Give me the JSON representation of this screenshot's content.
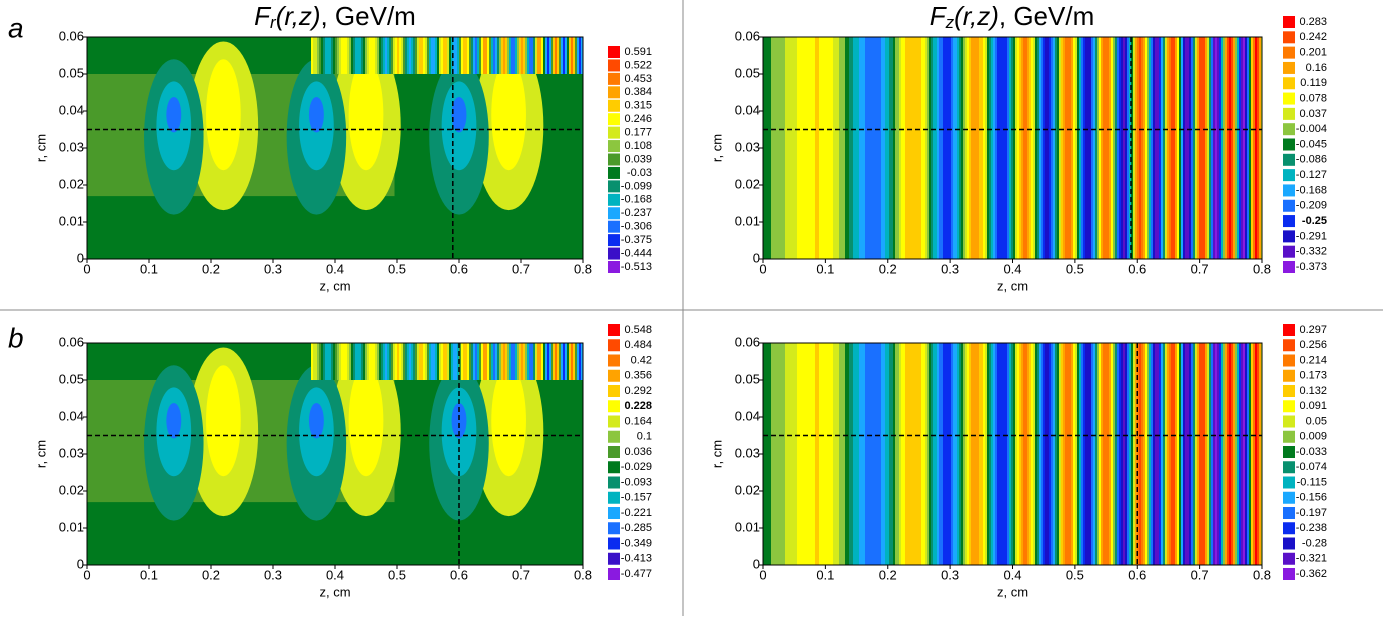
{
  "panel_labels": [
    "a",
    "b"
  ],
  "chart_data": [
    {
      "type": "contour",
      "title": [
        "F",
        "r",
        "(r,z)",
        ", GeV/m"
      ],
      "xlabel": "z, cm",
      "ylabel": "r, cm",
      "xlim": [
        0,
        0.8
      ],
      "ylim": [
        0,
        0.06
      ],
      "xticks": [
        0,
        0.1,
        0.2,
        0.3,
        0.4,
        0.5,
        0.6,
        0.7,
        0.8
      ],
      "yticks": [
        0,
        0.01,
        0.02,
        0.03,
        0.04,
        0.05,
        0.06
      ],
      "hline": 0.035,
      "vline": 0.59,
      "levels": [
        0.591,
        0.522,
        0.453,
        0.384,
        0.315,
        0.246,
        0.177,
        0.108,
        0.039,
        -0.03,
        -0.099,
        -0.168,
        -0.237,
        -0.306,
        -0.375,
        -0.444,
        -0.513
      ],
      "colors": [
        "#ff0000",
        "#ff4a00",
        "#ff7a00",
        "#ffa300",
        "#ffcc00",
        "#ffff00",
        "#d4ea1c",
        "#8cc63f",
        "#4a9a2a",
        "#007a1e",
        "#08906e",
        "#00b3c0",
        "#1aa8ff",
        "#1a70ff",
        "#0a2cf0",
        "#3a10c8",
        "#8a1ae0"
      ]
    },
    {
      "type": "contour",
      "title": [
        "F",
        "z",
        "(r,z)",
        ", GeV/m"
      ],
      "xlabel": "z, cm",
      "ylabel": "r, cm",
      "xlim": [
        0,
        0.8
      ],
      "ylim": [
        0,
        0.06
      ],
      "xticks": [
        0,
        0.1,
        0.2,
        0.3,
        0.4,
        0.5,
        0.6,
        0.7,
        0.8
      ],
      "yticks": [
        0,
        0.01,
        0.02,
        0.03,
        0.04,
        0.05,
        0.06
      ],
      "hline": 0.035,
      "vline": 0.59,
      "bold_index": 13,
      "levels": [
        0.283,
        0.242,
        0.201,
        0.16,
        0.119,
        0.078,
        0.037,
        -0.004,
        -0.045,
        -0.086,
        -0.127,
        -0.168,
        -0.209,
        -0.25,
        -0.291,
        -0.332,
        -0.373
      ],
      "colors": [
        "#ff0000",
        "#ff4a00",
        "#ff7a00",
        "#ffa300",
        "#ffcc00",
        "#ffff00",
        "#d4ea1c",
        "#8cc63f",
        "#007a1e",
        "#08906e",
        "#00b3c0",
        "#1aa8ff",
        "#1a70ff",
        "#0a2cf0",
        "#1a10c8",
        "#5a10c8",
        "#8a1ae0"
      ]
    },
    {
      "type": "contour",
      "xlabel": "z, cm",
      "ylabel": "r, cm",
      "xlim": [
        0,
        0.8
      ],
      "ylim": [
        0,
        0.06
      ],
      "xticks": [
        0,
        0.1,
        0.2,
        0.3,
        0.4,
        0.5,
        0.6,
        0.7,
        0.8
      ],
      "yticks": [
        0,
        0.01,
        0.02,
        0.03,
        0.04,
        0.05,
        0.06
      ],
      "hline": 0.035,
      "vline": 0.6,
      "bold_index": 5,
      "levels": [
        0.548,
        0.484,
        0.42,
        0.356,
        0.292,
        0.228,
        0.164,
        0.1,
        0.036,
        -0.029,
        -0.093,
        -0.157,
        -0.221,
        -0.285,
        -0.349,
        -0.413,
        -0.477
      ],
      "colors": [
        "#ff0000",
        "#ff4a00",
        "#ff7a00",
        "#ffa300",
        "#ffcc00",
        "#ffff00",
        "#d4ea1c",
        "#8cc63f",
        "#4a9a2a",
        "#007a1e",
        "#08906e",
        "#00b3c0",
        "#1aa8ff",
        "#1a70ff",
        "#0a2cf0",
        "#3a10c8",
        "#8a1ae0"
      ]
    },
    {
      "type": "contour",
      "xlabel": "z, cm",
      "ylabel": "r, cm",
      "xlim": [
        0,
        0.8
      ],
      "ylim": [
        0,
        0.06
      ],
      "xticks": [
        0,
        0.1,
        0.2,
        0.3,
        0.4,
        0.5,
        0.6,
        0.7,
        0.8
      ],
      "yticks": [
        0,
        0.01,
        0.02,
        0.03,
        0.04,
        0.05,
        0.06
      ],
      "hline": 0.035,
      "vline": 0.6,
      "levels": [
        0.297,
        0.256,
        0.214,
        0.173,
        0.132,
        0.091,
        0.05,
        0.009,
        -0.033,
        -0.074,
        -0.115,
        -0.156,
        -0.197,
        -0.238,
        -0.28,
        -0.321,
        -0.362
      ],
      "colors": [
        "#ff0000",
        "#ff4a00",
        "#ff7a00",
        "#ffa300",
        "#ffcc00",
        "#ffff00",
        "#d4ea1c",
        "#8cc63f",
        "#007a1e",
        "#08906e",
        "#00b3c0",
        "#1aa8ff",
        "#1a70ff",
        "#0a2cf0",
        "#1a10c8",
        "#5a10c8",
        "#8a1ae0"
      ]
    }
  ]
}
